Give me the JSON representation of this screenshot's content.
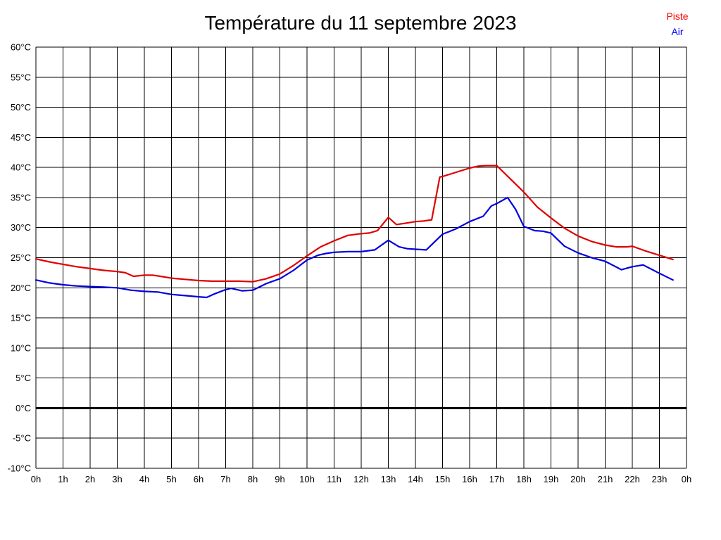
{
  "header": {
    "title": "Température du 11 septembre 2023"
  },
  "legend": {
    "piste": {
      "label": "Piste",
      "color": "#ff0000"
    },
    "air": {
      "label": "Air",
      "color": "#0000ff"
    }
  },
  "chart_data": {
    "type": "line",
    "title": "Température du 11 septembre 2023",
    "xlabel": "",
    "ylabel": "",
    "grid": true,
    "legend_position": "top-right",
    "x_axis": {
      "min": 0,
      "max": 24,
      "tick_step": 1,
      "tick_labels": [
        "0h",
        "1h",
        "2h",
        "3h",
        "4h",
        "5h",
        "6h",
        "7h",
        "8h",
        "9h",
        "10h",
        "11h",
        "12h",
        "13h",
        "14h",
        "15h",
        "16h",
        "17h",
        "18h",
        "19h",
        "20h",
        "21h",
        "22h",
        "23h",
        "0h"
      ]
    },
    "y_axis": {
      "min": -10,
      "max": 60,
      "tick_step": 5,
      "unit": "°C",
      "tick_labels": [
        "-10°C",
        "-5°C",
        "0°C",
        "5°C",
        "10°C",
        "15°C",
        "20°C",
        "25°C",
        "30°C",
        "35°C",
        "40°C",
        "45°C",
        "50°C",
        "55°C",
        "60°C"
      ]
    },
    "zero_line": {
      "value": 0,
      "stroke_width": 3
    },
    "series": [
      {
        "name": "Piste",
        "color": "#e00000",
        "points": [
          [
            0,
            24.8
          ],
          [
            0.5,
            24.3
          ],
          [
            1,
            23.9
          ],
          [
            1.5,
            23.5
          ],
          [
            2,
            23.2
          ],
          [
            2.5,
            22.9
          ],
          [
            3,
            22.7
          ],
          [
            3.3,
            22.5
          ],
          [
            3.6,
            21.9
          ],
          [
            4,
            22.1
          ],
          [
            4.3,
            22.1
          ],
          [
            4.6,
            21.9
          ],
          [
            5,
            21.6
          ],
          [
            5.5,
            21.4
          ],
          [
            6,
            21.2
          ],
          [
            6.5,
            21.1
          ],
          [
            7,
            21.1
          ],
          [
            7.5,
            21.1
          ],
          [
            8,
            21.0
          ],
          [
            8.5,
            21.5
          ],
          [
            9,
            22.3
          ],
          [
            9.5,
            23.7
          ],
          [
            10,
            25.3
          ],
          [
            10.5,
            26.8
          ],
          [
            11,
            27.8
          ],
          [
            11.5,
            28.7
          ],
          [
            12,
            29.0
          ],
          [
            12.3,
            29.1
          ],
          [
            12.6,
            29.5
          ],
          [
            13,
            31.7
          ],
          [
            13.3,
            30.5
          ],
          [
            13.6,
            30.7
          ],
          [
            14,
            31.0
          ],
          [
            14.3,
            31.1
          ],
          [
            14.6,
            31.3
          ],
          [
            14.9,
            38.4
          ],
          [
            15,
            38.5
          ],
          [
            15.5,
            39.2
          ],
          [
            16,
            39.9
          ],
          [
            16.3,
            40.2
          ],
          [
            16.6,
            40.3
          ],
          [
            17,
            40.3
          ],
          [
            17.5,
            38.1
          ],
          [
            18,
            35.9
          ],
          [
            18.5,
            33.4
          ],
          [
            19,
            31.6
          ],
          [
            19.5,
            29.9
          ],
          [
            20,
            28.6
          ],
          [
            20.5,
            27.7
          ],
          [
            21,
            27.1
          ],
          [
            21.4,
            26.8
          ],
          [
            21.8,
            26.8
          ],
          [
            22,
            26.9
          ],
          [
            22.5,
            26.1
          ],
          [
            23,
            25.4
          ],
          [
            23.5,
            24.7
          ]
        ]
      },
      {
        "name": "Air",
        "color": "#0000e0",
        "points": [
          [
            0,
            21.3
          ],
          [
            0.5,
            20.8
          ],
          [
            1,
            20.5
          ],
          [
            1.5,
            20.3
          ],
          [
            2,
            20.2
          ],
          [
            2.5,
            20.1
          ],
          [
            3,
            20.0
          ],
          [
            3.5,
            19.6
          ],
          [
            4,
            19.4
          ],
          [
            4.5,
            19.3
          ],
          [
            5,
            18.9
          ],
          [
            5.5,
            18.7
          ],
          [
            6,
            18.5
          ],
          [
            6.3,
            18.4
          ],
          [
            6.6,
            19.0
          ],
          [
            7,
            19.7
          ],
          [
            7.2,
            19.9
          ],
          [
            7.6,
            19.5
          ],
          [
            8,
            19.6
          ],
          [
            8.5,
            20.7
          ],
          [
            9,
            21.5
          ],
          [
            9.5,
            22.9
          ],
          [
            10,
            24.6
          ],
          [
            10.4,
            25.4
          ],
          [
            10.7,
            25.7
          ],
          [
            11,
            25.9
          ],
          [
            11.5,
            26.0
          ],
          [
            12,
            26.0
          ],
          [
            12.5,
            26.3
          ],
          [
            13,
            27.9
          ],
          [
            13.4,
            26.8
          ],
          [
            13.7,
            26.5
          ],
          [
            14,
            26.4
          ],
          [
            14.4,
            26.3
          ],
          [
            14.7,
            27.6
          ],
          [
            15,
            28.9
          ],
          [
            15.5,
            29.8
          ],
          [
            16,
            31.0
          ],
          [
            16.5,
            31.9
          ],
          [
            16.8,
            33.6
          ],
          [
            17,
            34.0
          ],
          [
            17.4,
            35.0
          ],
          [
            17.7,
            33.0
          ],
          [
            18,
            30.2
          ],
          [
            18.4,
            29.5
          ],
          [
            18.7,
            29.4
          ],
          [
            19,
            29.1
          ],
          [
            19.5,
            26.9
          ],
          [
            20,
            25.8
          ],
          [
            20.5,
            25.0
          ],
          [
            21,
            24.4
          ],
          [
            21.6,
            23.0
          ],
          [
            22,
            23.5
          ],
          [
            22.4,
            23.8
          ],
          [
            23,
            22.4
          ],
          [
            23.5,
            21.3
          ]
        ]
      }
    ]
  }
}
